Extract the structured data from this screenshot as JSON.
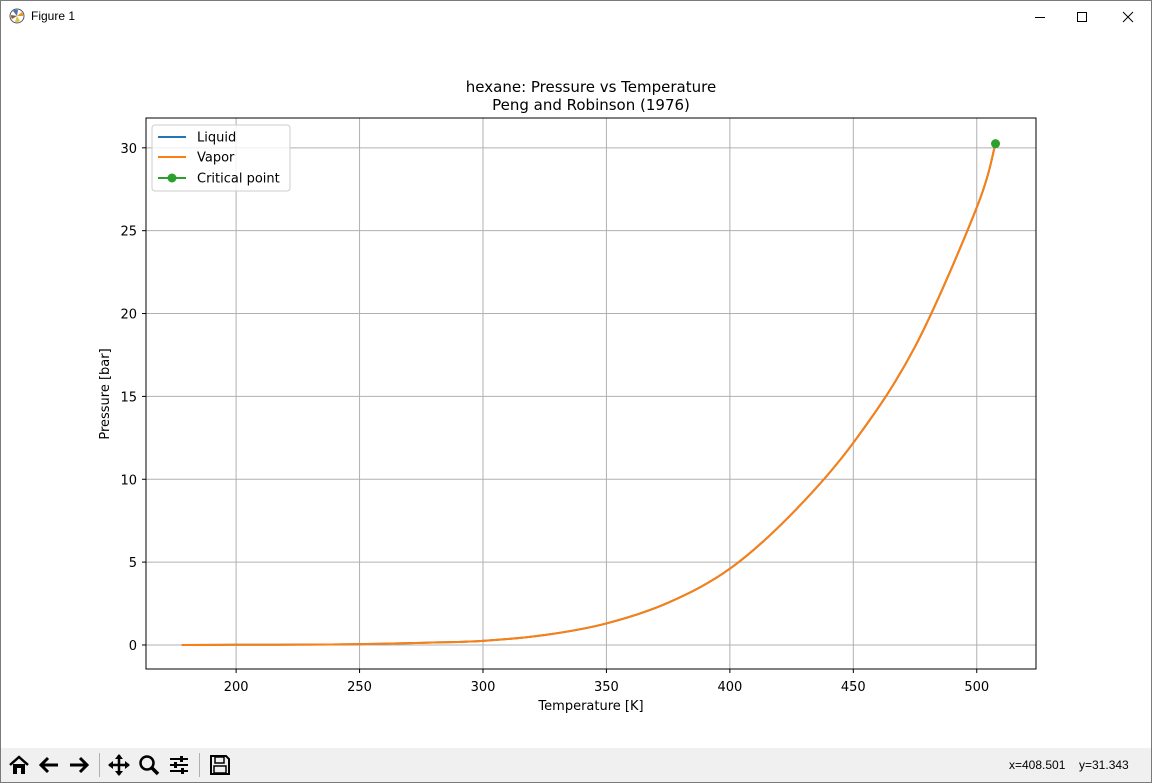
{
  "window": {
    "title": "Figure 1",
    "controls": {
      "minimize": "minimize",
      "maximize": "maximize",
      "close": "close"
    }
  },
  "toolbar": {
    "buttons": [
      "home-icon",
      "back-icon",
      "forward-icon",
      "pan-icon",
      "zoom-icon",
      "configure-subplots-icon",
      "save-icon"
    ]
  },
  "status": {
    "x_readout": "x=408.501",
    "y_readout": "y=31.343"
  },
  "colors": {
    "liquid": "#1f77b4",
    "vapor": "#ff7f0e",
    "critical": "#2ca02c",
    "grid": "#b0b0b0"
  },
  "chart_data": {
    "type": "line",
    "title": "hexane: Pressure vs Temperature",
    "subtitle": "Peng and Robinson (1976)",
    "xlabel": "Temperature [K]",
    "ylabel": "Pressure [bar]",
    "xlim": [
      163.5,
      524
    ],
    "ylim": [
      -1.45,
      31.8
    ],
    "xticks": [
      200,
      250,
      300,
      350,
      400,
      450,
      500
    ],
    "yticks": [
      0,
      5,
      10,
      15,
      20,
      25,
      30
    ],
    "grid": true,
    "legend_position": "top-left",
    "series": [
      {
        "name": "Liquid",
        "x": [
          178,
          200,
          225,
          250,
          275,
          300,
          325,
          350,
          375,
          400,
          425,
          450,
          475,
          500,
          507.6
        ],
        "y": [
          0.0,
          0.01,
          0.02,
          0.05,
          0.13,
          0.25,
          0.6,
          1.3,
          2.55,
          4.6,
          7.9,
          12.2,
          18.0,
          26.4,
          30.25
        ]
      },
      {
        "name": "Vapor",
        "x": [
          178,
          200,
          225,
          250,
          275,
          300,
          325,
          350,
          375,
          400,
          425,
          450,
          475,
          500,
          507.6
        ],
        "y": [
          0.0,
          0.01,
          0.02,
          0.05,
          0.13,
          0.25,
          0.6,
          1.3,
          2.55,
          4.6,
          7.9,
          12.2,
          18.0,
          26.4,
          30.25
        ]
      },
      {
        "name": "Critical point",
        "x": [
          507.6
        ],
        "y": [
          30.25
        ]
      }
    ]
  }
}
